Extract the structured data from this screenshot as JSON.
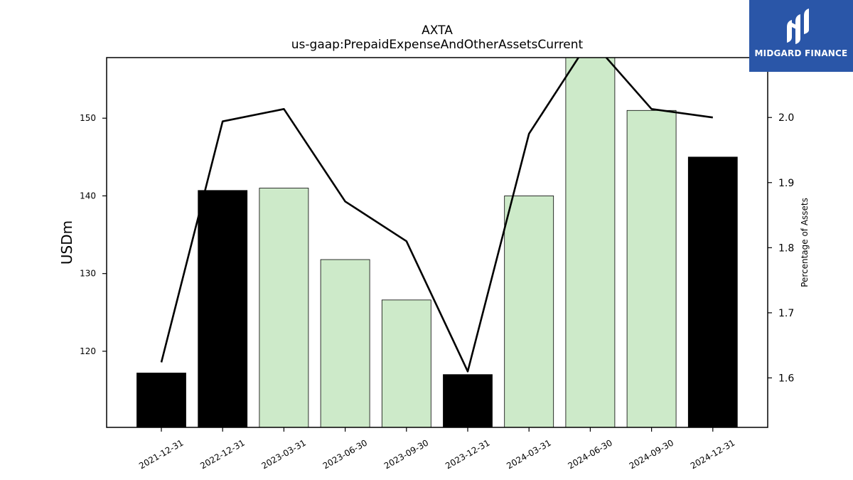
{
  "chart_data": {
    "type": "bar",
    "title": "AXTA",
    "subtitle": "us-gaap:PrepaidExpenseAndOtherAssetsCurrent",
    "ylabel": "USDm",
    "y2label": "Percentage of Assets",
    "categories": [
      "2021-12-31",
      "2022-12-31",
      "2023-03-31",
      "2023-06-30",
      "2023-09-30",
      "2023-12-31",
      "2024-03-31",
      "2024-06-30",
      "2024-09-30",
      "2024-12-31"
    ],
    "values": [
      117.2,
      140.7,
      141.0,
      131.8,
      126.6,
      117.0,
      140.0,
      158.0,
      151.0,
      145.0
    ],
    "bar_kinds": [
      "annual",
      "annual",
      "quarterly",
      "quarterly",
      "quarterly",
      "annual",
      "quarterly",
      "quarterly",
      "quarterly",
      "annual"
    ],
    "line_values": [
      1.624,
      1.994,
      2.013,
      1.871,
      1.81,
      1.61,
      1.975,
      2.12,
      2.013,
      2.0
    ],
    "ylim": [
      110.2,
      157.8
    ],
    "y2lim": [
      1.524,
      2.092
    ],
    "yticks": [
      120,
      130,
      140,
      150
    ],
    "y2ticks": [
      1.6,
      1.7,
      1.8,
      1.9,
      2.0
    ],
    "colors": {
      "annual_bar": "#000000",
      "quarterly_bar": "#cdeac9",
      "line": "#000000"
    }
  },
  "logo": {
    "text": "MIDGARD FINANCE",
    "background": "#2a56a8"
  }
}
